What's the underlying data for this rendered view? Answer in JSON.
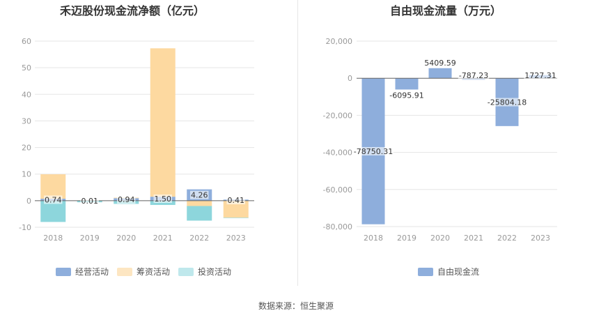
{
  "source_label": "数据来源：恒生聚源",
  "colors": {
    "operating": "#8eaedc",
    "financing": "#fdd9a0",
    "investing": "#8dd6dc",
    "fcf": "#8eaedc",
    "legend_financing": "#fde6c2",
    "legend_investing": "#bfe8ec",
    "grid": "#e5e5e5",
    "axis_text": "#999999",
    "title": "#333333"
  },
  "chart_data": [
    {
      "type": "bar",
      "stacked": true,
      "title": "禾迈股份现金流净额（亿元）",
      "xlabel": "",
      "ylabel": "",
      "categories": [
        "2018",
        "2019",
        "2020",
        "2021",
        "2022",
        "2023"
      ],
      "ylim": [
        -10,
        60
      ],
      "yticks": [
        -10,
        0,
        10,
        20,
        30,
        40,
        50,
        60
      ],
      "yticklabels": [
        "-10",
        "0",
        "10",
        "20",
        "30",
        "40",
        "50",
        "60"
      ],
      "grid": true,
      "legend_position": "bottom",
      "series": [
        {
          "name": "经营活动",
          "values": [
            0.74,
            0.01,
            0.94,
            1.5,
            4.26,
            0.41
          ],
          "labels": [
            "0.74",
            "0.01",
            "0.94",
            "1.50",
            "4.26",
            "0.41"
          ]
        },
        {
          "name": "筹资活动",
          "values": [
            9.2,
            0.1,
            0.2,
            55.8,
            -2.0,
            -6.4
          ]
        },
        {
          "name": "投资活动",
          "values": [
            -8.0,
            -0.6,
            -1.2,
            -1.6,
            -5.5,
            -0.1
          ]
        }
      ]
    },
    {
      "type": "bar",
      "title": "自由现金流量（万元）",
      "xlabel": "",
      "ylabel": "",
      "categories": [
        "2018",
        "2019",
        "2020",
        "2021",
        "2022",
        "2023"
      ],
      "ylim": [
        -80000,
        20000
      ],
      "yticks": [
        -80000,
        -60000,
        -40000,
        -20000,
        0,
        20000
      ],
      "yticklabels": [
        "-80,000",
        "-60,000",
        "-40,000",
        "-20,000",
        "0",
        "20,000"
      ],
      "grid": true,
      "legend_position": "bottom",
      "series": [
        {
          "name": "自由现金流",
          "values": [
            -78750.31,
            -6095.91,
            5409.59,
            -787.23,
            -25804.18,
            1727.31
          ],
          "labels": [
            "-78750.31",
            "-6095.91",
            "5409.59",
            "-787.23",
            "-25804.18",
            "1727.31"
          ]
        }
      ]
    }
  ]
}
